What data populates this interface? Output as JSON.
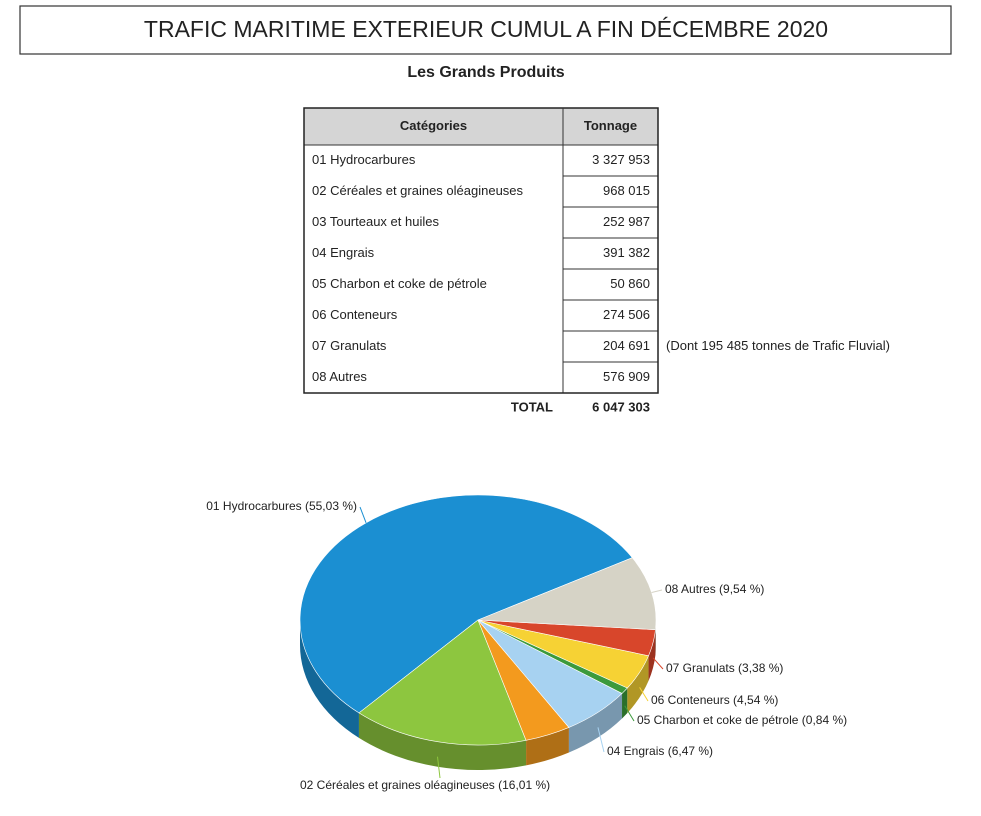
{
  "header": {
    "title": "TRAFIC MARITIME EXTERIEUR CUMUL A FIN DÉCEMBRE 2020",
    "subtitle": "Les Grands Produits"
  },
  "table": {
    "columns": [
      "Catégories",
      "Tonnage"
    ],
    "rows": [
      [
        "01 Hydrocarbures",
        "3 327 953"
      ],
      [
        "02 Céréales et graines oléagineuses",
        "968 015"
      ],
      [
        "03 Tourteaux et huiles",
        "252 987"
      ],
      [
        "04 Engrais",
        "391 382"
      ],
      [
        "05 Charbon et coke de pétrole",
        "50 860"
      ],
      [
        "06 Conteneurs",
        "274 506"
      ],
      [
        "07 Granulats",
        "204 691",
        "(Dont 195 485 tonnes de Trafic Fluvial)"
      ],
      [
        "08 Autres",
        "576 909"
      ]
    ],
    "total": {
      "label": "TOTAL",
      "value": "6 047 303"
    }
  },
  "chart_data": {
    "type": "pie",
    "values": [
      55.03,
      16.01,
      4.18,
      6.47,
      0.84,
      4.54,
      3.38,
      9.54
    ],
    "value_labels": [
      "01 Hydrocarbures (55,03 %)",
      "02 Céréales et graines oléagineuses (16,01 %)",
      null,
      "04 Engrais (6,47 %)",
      "05 Charbon et coke de pétrole (0,84 %)",
      "06 Conteneurs (4,54 %)",
      "07 Granulats (3,38 %)",
      "08 Autres (9,54 %)"
    ],
    "colors": [
      "#1b8fd2",
      "#8dc63f",
      "#f39a1e",
      "#a7d2f1",
      "#3c9a3c",
      "#f6d234",
      "#d8462b",
      "#d6d3c6"
    ]
  }
}
